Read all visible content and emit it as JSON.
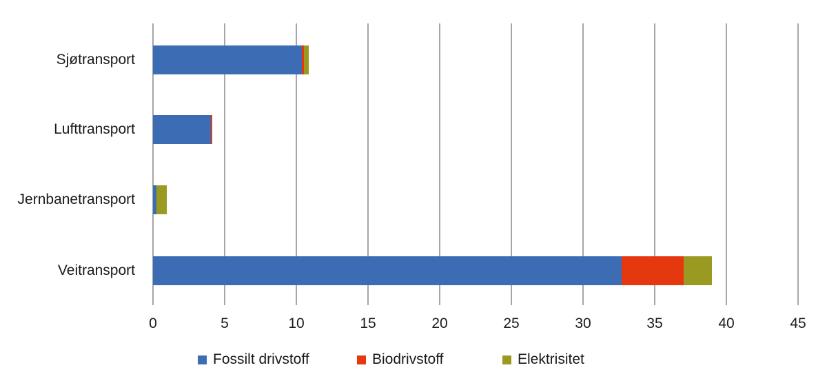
{
  "chart_data": {
    "type": "bar",
    "orientation": "horizontal",
    "stacked": true,
    "title": "",
    "xlabel": "",
    "ylabel": "",
    "categories": [
      "Sjøtransport",
      "Lufttransport",
      "Jernbanetransport",
      "Veitransport"
    ],
    "series": [
      {
        "name": "Fossilt drivstoff",
        "color": "#3c6cb4",
        "values": [
          10.4,
          4.05,
          0.25,
          32.7
        ]
      },
      {
        "name": "Biodrivstoff",
        "color": "#e5380f",
        "values": [
          0.15,
          0.1,
          0,
          4.3
        ]
      },
      {
        "name": "Elektrisitet",
        "color": "#9a9a23",
        "values": [
          0.3,
          0,
          0.7,
          2.0
        ]
      }
    ],
    "xlim": [
      0,
      45
    ],
    "xticks": [
      0,
      5,
      10,
      15,
      20,
      25,
      30,
      35,
      40,
      45
    ],
    "grid": "vertical",
    "legend_position": "bottom"
  },
  "colors": {
    "background": "#ffffff",
    "gridline": "#a6a6a6",
    "text": "#1a1a1a"
  }
}
